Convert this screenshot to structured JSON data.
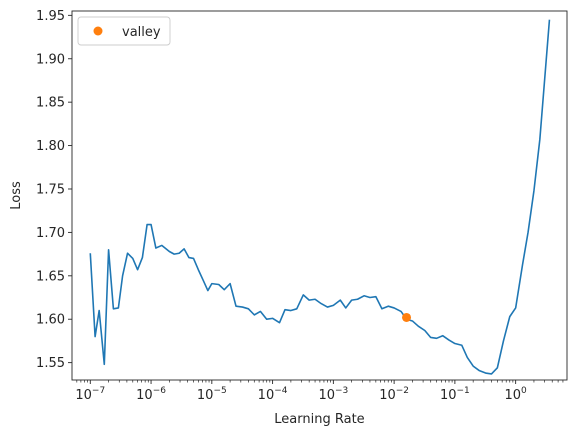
{
  "chart_data": {
    "type": "line",
    "title": "",
    "xlabel": "Learning Rate",
    "ylabel": "Loss",
    "xscale": "log",
    "xlim": [
      5e-08,
      7.0
    ],
    "ylim": [
      1.53,
      1.955
    ],
    "grid": false,
    "legend": {
      "position": "top-left",
      "entries": [
        "valley"
      ]
    },
    "x_ticks": [
      {
        "value": 1e-07,
        "base": "10",
        "exp": "−7"
      },
      {
        "value": 1e-06,
        "base": "10",
        "exp": "−6"
      },
      {
        "value": 1e-05,
        "base": "10",
        "exp": "−5"
      },
      {
        "value": 0.0001,
        "base": "10",
        "exp": "−4"
      },
      {
        "value": 0.001,
        "base": "10",
        "exp": "−3"
      },
      {
        "value": 0.01,
        "base": "10",
        "exp": "−2"
      },
      {
        "value": 0.1,
        "base": "10",
        "exp": "−1"
      },
      {
        "value": 1,
        "base": "10",
        "exp": "0"
      }
    ],
    "y_ticks": [
      1.55,
      1.6,
      1.65,
      1.7,
      1.75,
      1.8,
      1.85,
      1.9,
      1.95
    ],
    "y_tick_labels": [
      "1.55",
      "1.60",
      "1.65",
      "1.70",
      "1.75",
      "1.80",
      "1.85",
      "1.90",
      "1.95"
    ],
    "series": [
      {
        "color": "#1f77b4",
        "x": [
          1e-07,
          1.2e-07,
          1.4e-07,
          1.7e-07,
          2e-07,
          2.4e-07,
          2.9e-07,
          3.4e-07,
          4.1e-07,
          5e-07,
          6e-07,
          7.2e-07,
          8.6e-07,
          1e-06,
          1.2e-06,
          1.5e-06,
          2e-06,
          2.4e-06,
          2.9e-06,
          3.5e-06,
          4.2e-06,
          5e-06,
          6e-06,
          7.2e-06,
          8.6e-06,
          1e-05,
          1.3e-05,
          1.6e-05,
          2e-05,
          2.5e-05,
          3.2e-05,
          4e-05,
          5e-05,
          6.3e-05,
          8e-05,
          0.0001,
          0.00013,
          0.00016,
          0.0002,
          0.00025,
          0.00032,
          0.0004,
          0.0005,
          0.00063,
          0.0008,
          0.001,
          0.0013,
          0.0016,
          0.002,
          0.0025,
          0.0032,
          0.004,
          0.005,
          0.0063,
          0.008,
          0.01,
          0.013,
          0.016,
          0.02,
          0.025,
          0.032,
          0.04,
          0.05,
          0.063,
          0.08,
          0.1,
          0.13,
          0.16,
          0.2,
          0.25,
          0.32,
          0.4,
          0.5,
          0.63,
          0.8,
          1.0,
          1.3,
          1.6,
          2.0,
          2.5,
          3.6
        ],
        "y": [
          1.676,
          1.58,
          1.61,
          1.548,
          1.68,
          1.612,
          1.613,
          1.65,
          1.676,
          1.67,
          1.657,
          1.671,
          1.709,
          1.709,
          1.682,
          1.685,
          1.678,
          1.675,
          1.676,
          1.681,
          1.671,
          1.67,
          1.657,
          1.645,
          1.633,
          1.641,
          1.64,
          1.634,
          1.641,
          1.615,
          1.614,
          1.612,
          1.605,
          1.609,
          1.6,
          1.601,
          1.596,
          1.611,
          1.61,
          1.612,
          1.628,
          1.622,
          1.623,
          1.618,
          1.614,
          1.616,
          1.622,
          1.613,
          1.622,
          1.623,
          1.627,
          1.625,
          1.626,
          1.612,
          1.615,
          1.613,
          1.609,
          1.6,
          1.598,
          1.592,
          1.587,
          1.579,
          1.578,
          1.581,
          1.576,
          1.572,
          1.57,
          1.556,
          1.546,
          1.541,
          1.538,
          1.537,
          1.544,
          1.575,
          1.603,
          1.613,
          1.663,
          1.7,
          1.748,
          1.807,
          1.945
        ]
      }
    ],
    "markers": [
      {
        "name": "valley",
        "x": 0.016,
        "y": 1.602,
        "color": "#ff7f0e"
      }
    ]
  }
}
